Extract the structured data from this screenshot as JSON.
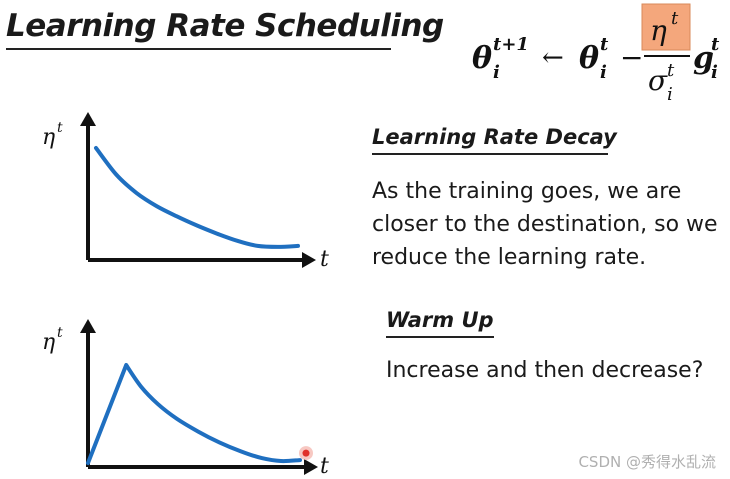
{
  "slide": {
    "title": "Learning Rate Scheduling",
    "formula": {
      "theta": "θ",
      "t_plus_1": "t+1",
      "sub_i": "i",
      "sup_t": "t",
      "arrow": "←",
      "minus": "−",
      "eta": "η",
      "sigma": "σ",
      "g": "g",
      "highlight_color": "#f4a77c"
    },
    "decay": {
      "heading": "Learning Rate Decay",
      "line1": "As the training goes, we are",
      "line2": "closer to the destination, so we",
      "line3": "reduce the learning rate."
    },
    "warmup": {
      "heading": "Warm Up",
      "text": "Increase and then decrease?"
    },
    "watermark": "CSDN @秀得水乱流"
  },
  "chart_data": [
    {
      "type": "line",
      "name_shown": "",
      "ylabel": "η",
      "ylabel_sup": "t",
      "xlabel": "t",
      "curve_color": "#1f6fc0",
      "x": [
        0,
        0.1,
        0.2,
        0.3,
        0.4,
        0.5,
        0.6,
        0.7,
        0.8,
        0.9,
        1.0
      ],
      "y": [
        1.0,
        0.74,
        0.56,
        0.43,
        0.33,
        0.24,
        0.16,
        0.09,
        0.04,
        0.03,
        0.04
      ]
    },
    {
      "type": "line",
      "ylabel": "η",
      "ylabel_sup": "t",
      "xlabel": "t",
      "curve_color": "#1f6fc0",
      "cursor_color": "#e0302a",
      "x": [
        0,
        0.18,
        0.25,
        0.33,
        0.42,
        0.52,
        0.62,
        0.72,
        0.82,
        0.91,
        1.0
      ],
      "y": [
        0.0,
        1.0,
        0.78,
        0.6,
        0.45,
        0.32,
        0.21,
        0.12,
        0.05,
        0.02,
        0.03
      ]
    }
  ]
}
